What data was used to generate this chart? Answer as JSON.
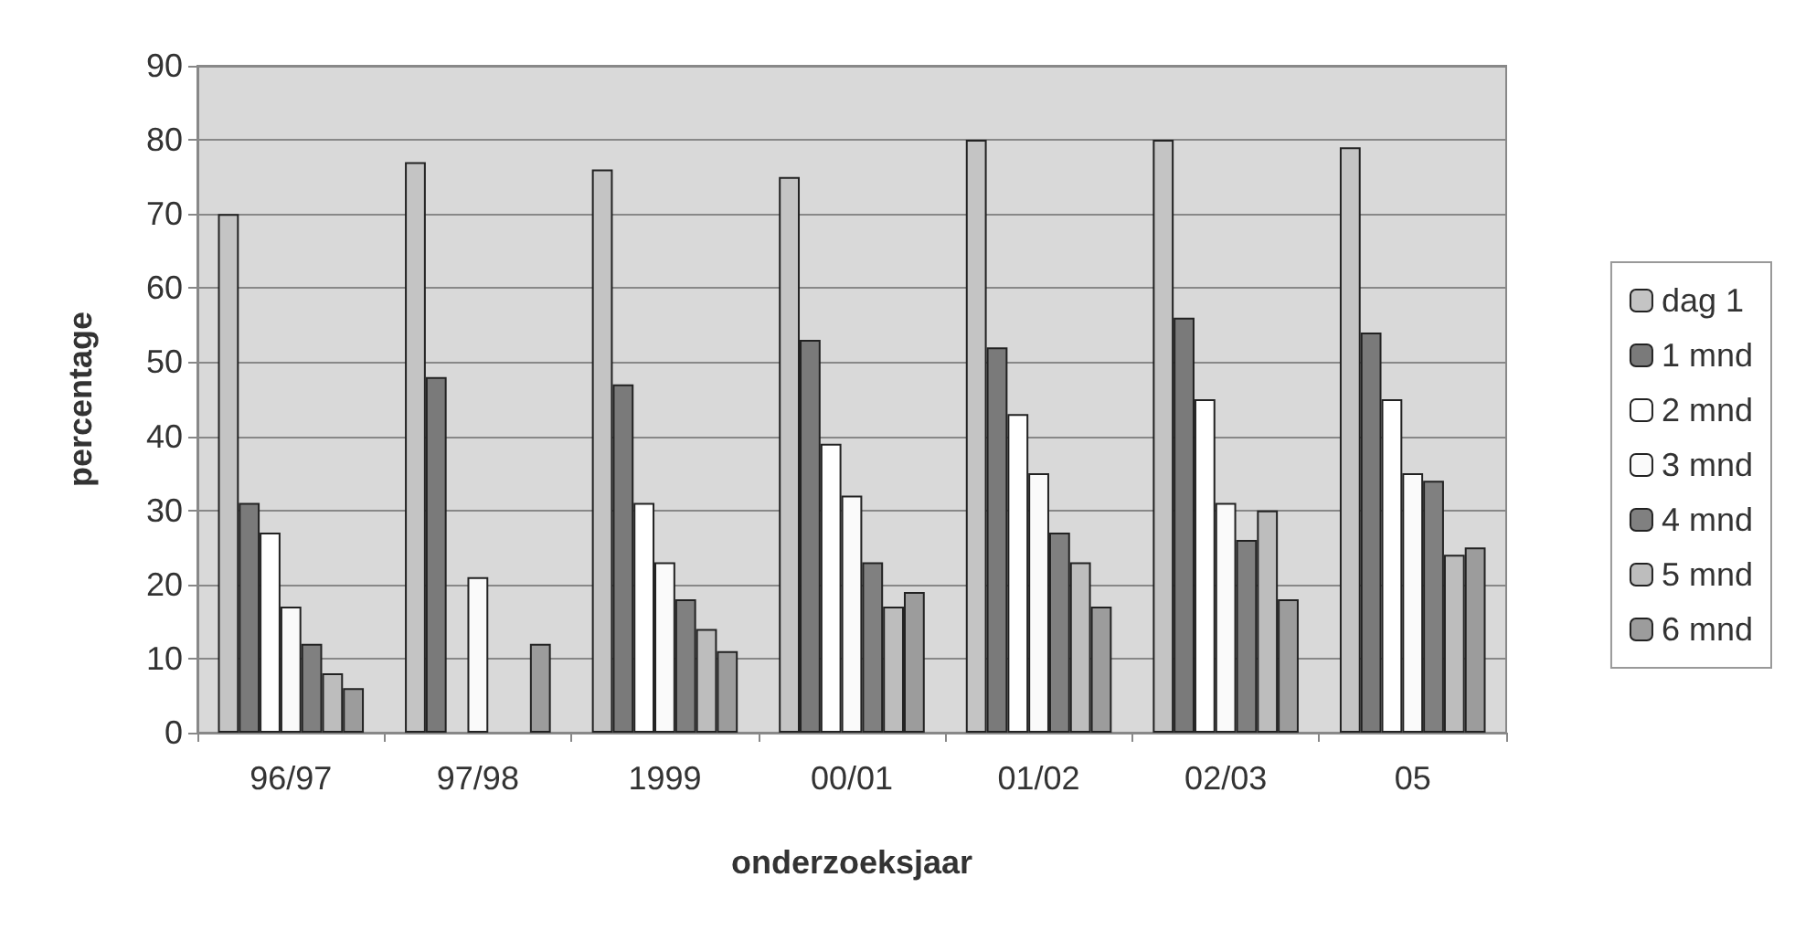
{
  "chart_data": {
    "type": "bar",
    "xlabel": "onderzoeksjaar",
    "ylabel": "percentage",
    "categories": [
      "96/97",
      "97/98",
      "1999",
      "00/01",
      "01/02",
      "02/03",
      "05"
    ],
    "series": [
      {
        "name": "dag 1",
        "color": "#c4c4c4",
        "values": [
          70,
          77,
          76,
          75,
          80,
          80,
          79
        ]
      },
      {
        "name": "1 mnd",
        "color": "#7a7a7a",
        "values": [
          31,
          48,
          47,
          53,
          52,
          56,
          54
        ]
      },
      {
        "name": "2 mnd",
        "color": "#ffffff",
        "values": [
          27,
          null,
          31,
          39,
          43,
          45,
          45
        ]
      },
      {
        "name": "3 mnd",
        "color": "#fafafa",
        "values": [
          17,
          21,
          23,
          32,
          35,
          31,
          35
        ]
      },
      {
        "name": "4 mnd",
        "color": "#808080",
        "values": [
          12,
          null,
          18,
          23,
          27,
          26,
          34
        ]
      },
      {
        "name": "5 mnd",
        "color": "#bdbdbd",
        "values": [
          8,
          null,
          14,
          17,
          23,
          30,
          24
        ]
      },
      {
        "name": "6 mnd",
        "color": "#9c9c9c",
        "values": [
          6,
          12,
          11,
          19,
          17,
          18,
          25
        ]
      }
    ],
    "ylim": [
      0,
      90
    ],
    "yticks": [
      0,
      10,
      20,
      30,
      40,
      50,
      60,
      70,
      80,
      90
    ],
    "grid": "y",
    "legend": "right"
  }
}
